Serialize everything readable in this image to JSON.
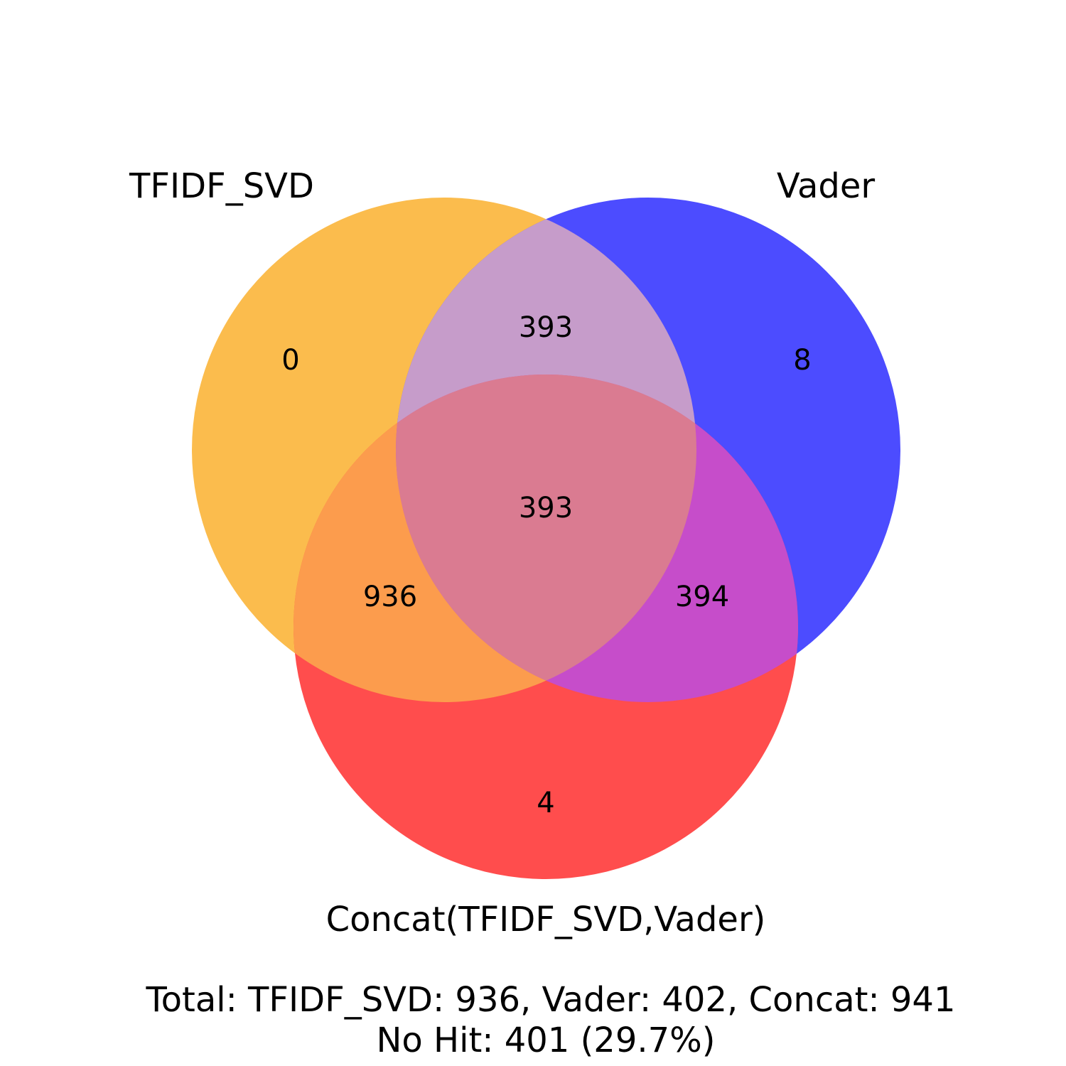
{
  "sets": [
    {
      "id": "a",
      "name": "TFIDF_SVD",
      "color": "#FBBC4D"
    },
    {
      "id": "b",
      "name": "Vader",
      "color": "#4C4CFF"
    },
    {
      "id": "c",
      "name": "Concat(TFIDF_SVD,Vader)",
      "color": "#FF4D4D"
    }
  ],
  "regions": {
    "a_only": "0",
    "b_only": "8",
    "c_only": "4",
    "ab_only": "393",
    "ac_only": "936",
    "bc_only": "394",
    "abc": "393"
  },
  "region_colors": {
    "ab": "#C69CCA",
    "ac": "#FC9C4D",
    "bc": "#C64DCA",
    "abc": "#DA7B91"
  },
  "summary": {
    "totals": "Total: TFIDF_SVD: 936, Vader: 402, Concat: 941",
    "no_hit": "No Hit: 401 (29.7%)"
  }
}
